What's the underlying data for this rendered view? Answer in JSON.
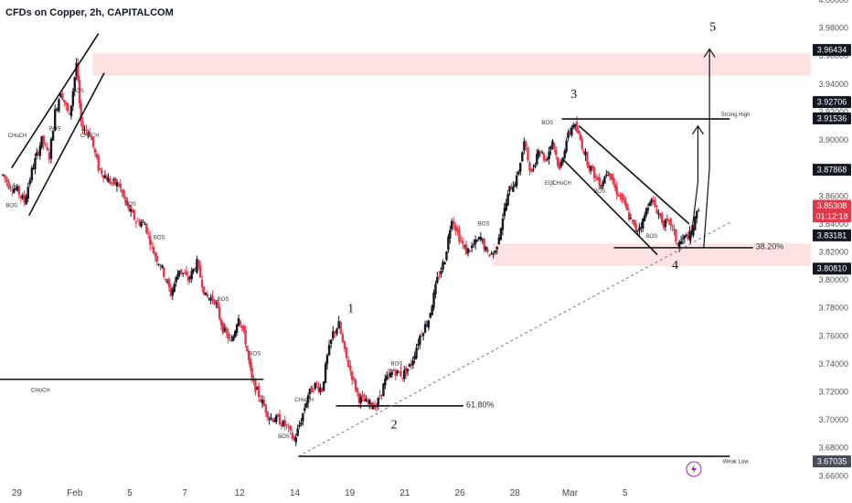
{
  "header": {
    "title": "CFDs on Copper, 2h, CAPITALCOM"
  },
  "chart_data": {
    "type": "candlestick",
    "symbol": "CFDs on Copper",
    "timeframe": "2h",
    "source": "CAPITALCOM",
    "ylim": [
      3.655,
      4.0
    ],
    "y_ticks": [
      "3.66000",
      "3.68000",
      "3.70000",
      "3.72000",
      "3.74000",
      "3.76000",
      "3.78000",
      "3.80000",
      "3.82000",
      "3.84000",
      "3.86000",
      "3.88000",
      "3.90000",
      "3.92000",
      "3.94000",
      "3.96000",
      "3.98000",
      "4.00000"
    ],
    "x_ticks": [
      "29",
      "Feb",
      "5",
      "7",
      "12",
      "14",
      "19",
      "21",
      "26",
      "28",
      "Mar",
      "5"
    ],
    "x_tick_positions": [
      0,
      10,
      19.5,
      29,
      38.5,
      48,
      57.5,
      67,
      76.5,
      86,
      95.5,
      105
    ],
    "price_tags": [
      {
        "label": "3.96434",
        "value": 3.96434,
        "style": "dark"
      },
      {
        "label": "3.92706",
        "value": 3.92706,
        "style": "dark"
      },
      {
        "label": "3.91536",
        "value": 3.91536,
        "style": "dark"
      },
      {
        "label": "3.87868",
        "value": 3.87868,
        "style": "dark"
      },
      {
        "label": "3.85308",
        "value": 3.853,
        "style": "red"
      },
      {
        "label": "01:12:18",
        "value": 3.8455,
        "style": "red"
      },
      {
        "label": "3.83181",
        "value": 3.83181,
        "style": "dark"
      },
      {
        "label": "3.80810",
        "value": 3.8081,
        "style": "dark"
      },
      {
        "label": "3.67035",
        "value": 3.67035,
        "style": "gray"
      }
    ],
    "waypoints": [
      [
        0.5,
        3.875
      ],
      [
        1.5,
        3.868
      ],
      [
        3,
        3.864
      ],
      [
        4.2,
        3.856
      ],
      [
        5.5,
        3.878
      ],
      [
        7.2,
        3.9
      ],
      [
        8.5,
        3.888
      ],
      [
        9.5,
        3.92
      ],
      [
        10.5,
        3.935
      ],
      [
        12,
        3.916
      ],
      [
        13.2,
        3.955
      ],
      [
        14,
        3.91
      ],
      [
        15.5,
        3.905
      ],
      [
        17,
        3.88
      ],
      [
        19,
        3.87
      ],
      [
        20.5,
        3.868
      ],
      [
        22,
        3.852
      ],
      [
        23.5,
        3.842
      ],
      [
        25,
        3.84
      ],
      [
        26.5,
        3.82
      ],
      [
        28,
        3.808
      ],
      [
        29.5,
        3.79
      ],
      [
        31,
        3.808
      ],
      [
        32.5,
        3.8
      ],
      [
        34,
        3.812
      ],
      [
        35.5,
        3.788
      ],
      [
        37,
        3.786
      ],
      [
        38.5,
        3.765
      ],
      [
        40,
        3.755
      ],
      [
        41.2,
        3.775
      ],
      [
        42.4,
        3.756
      ],
      [
        43.5,
        3.728
      ],
      [
        45,
        3.715
      ],
      [
        46.5,
        3.702
      ],
      [
        48,
        3.7
      ],
      [
        49.5,
        3.695
      ],
      [
        50.8,
        3.685
      ],
      [
        52,
        3.7
      ],
      [
        53.2,
        3.718
      ],
      [
        54.4,
        3.725
      ],
      [
        55.6,
        3.722
      ],
      [
        56.5,
        3.745
      ],
      [
        57.5,
        3.762
      ],
      [
        58.5,
        3.768
      ],
      [
        59.5,
        3.748
      ],
      [
        60.5,
        3.735
      ],
      [
        62,
        3.715
      ],
      [
        63.5,
        3.712
      ],
      [
        65,
        3.71
      ],
      [
        66.5,
        3.728
      ],
      [
        68,
        3.735
      ],
      [
        69.5,
        3.732
      ],
      [
        71,
        3.74
      ],
      [
        72.5,
        3.76
      ],
      [
        74,
        3.772
      ],
      [
        75.5,
        3.8
      ],
      [
        76.8,
        3.815
      ],
      [
        78,
        3.845
      ],
      [
        79.3,
        3.83
      ],
      [
        80.5,
        3.82
      ],
      [
        81.8,
        3.825
      ],
      [
        83,
        3.83
      ],
      [
        84.2,
        3.818
      ],
      [
        85.5,
        3.82
      ],
      [
        86.8,
        3.845
      ],
      [
        88,
        3.865
      ],
      [
        89.2,
        3.872
      ],
      [
        90.5,
        3.898
      ],
      [
        91.8,
        3.875
      ],
      [
        93,
        3.895
      ],
      [
        94.2,
        3.885
      ],
      [
        95.4,
        3.9
      ],
      [
        96.6,
        3.878
      ],
      [
        97.8,
        3.9
      ],
      [
        99,
        3.912
      ],
      [
        100.2,
        3.9
      ],
      [
        101.4,
        3.885
      ],
      [
        102.6,
        3.875
      ],
      [
        103.8,
        3.868
      ],
      [
        105,
        3.88
      ],
      [
        106.2,
        3.865
      ],
      [
        107.4,
        3.858
      ],
      [
        108.6,
        3.845
      ],
      [
        109.8,
        3.835
      ],
      [
        111,
        3.842
      ],
      [
        112.2,
        3.858
      ],
      [
        113.4,
        3.85
      ],
      [
        114.6,
        3.84
      ],
      [
        115.8,
        3.84
      ],
      [
        117,
        3.825
      ],
      [
        118.2,
        3.83
      ],
      [
        119.4,
        3.833
      ],
      [
        120.6,
        3.852
      ]
    ],
    "zones": [
      {
        "from_x": 16,
        "to_x": 140,
        "y_low": 3.946,
        "y_high": 3.962
      },
      {
        "from_x": 85,
        "to_x": 140,
        "y_low": 3.81,
        "y_high": 3.826
      }
    ],
    "lines": [
      {
        "kind": "solid",
        "points": [
          [
            0,
            3.729
          ],
          [
            45.5,
            3.729
          ]
        ]
      },
      {
        "kind": "solid",
        "points": [
          [
            51.5,
            3.674
          ],
          [
            126,
            3.674
          ]
        ]
      },
      {
        "kind": "solid",
        "points": [
          [
            97,
            3.915
          ],
          [
            126,
            3.915
          ]
        ]
      },
      {
        "kind": "solid",
        "points": [
          [
            106,
            3.823
          ],
          [
            130,
            3.823
          ]
        ]
      },
      {
        "kind": "solid",
        "points": [
          [
            58,
            3.71
          ],
          [
            80,
            3.71
          ]
        ]
      },
      {
        "kind": "solid",
        "points": [
          [
            5,
            3.846
          ],
          [
            18,
            3.948
          ]
        ]
      },
      {
        "kind": "solid",
        "points": [
          [
            2,
            3.88
          ],
          [
            17,
            3.976
          ]
        ]
      },
      {
        "kind": "solid",
        "points": [
          [
            100,
            3.91
          ],
          [
            119,
            3.84
          ]
        ]
      },
      {
        "kind": "solid",
        "points": [
          [
            97,
            3.887
          ],
          [
            113.5,
            3.818
          ]
        ]
      },
      {
        "kind": "dashed",
        "points": [
          [
            51.5,
            3.674
          ],
          [
            126,
            3.841
          ]
        ]
      },
      {
        "kind": "arrow",
        "points": [
          [
            119.2,
            3.826
          ],
          [
            120.5,
            3.87
          ],
          [
            120.5,
            3.91
          ]
        ]
      },
      {
        "kind": "arrow",
        "points": [
          [
            121.5,
            3.823
          ],
          [
            122.5,
            3.88
          ],
          [
            122.5,
            3.965
          ]
        ]
      }
    ],
    "labels": [
      {
        "text": "1",
        "x": 60,
        "y": 3.777,
        "kind": "wave"
      },
      {
        "text": "2",
        "x": 67.5,
        "y": 3.694,
        "kind": "wave"
      },
      {
        "text": "3",
        "x": 98.5,
        "y": 3.93,
        "kind": "wave"
      },
      {
        "text": "4",
        "x": 116,
        "y": 3.808,
        "kind": "wave"
      },
      {
        "text": "5",
        "x": 122.5,
        "y": 3.978,
        "kind": "wave"
      },
      {
        "text": "61.80%",
        "x": 80.5,
        "y": 3.709,
        "kind": "fib"
      },
      {
        "text": "38.20%",
        "x": 130.5,
        "y": 3.822,
        "kind": "fib"
      },
      {
        "text": "CHoCH",
        "x": 7,
        "y": 3.72,
        "kind": "ann"
      },
      {
        "text": "CHoCH",
        "x": 3,
        "y": 3.902,
        "kind": "ann"
      },
      {
        "text": "CHoCH",
        "x": 15.5,
        "y": 3.902,
        "kind": "ann"
      },
      {
        "text": "CHoCH",
        "x": 52.5,
        "y": 3.713,
        "kind": "ann"
      },
      {
        "text": "CHoCH",
        "x": 97,
        "y": 3.868,
        "kind": "ann"
      },
      {
        "text": "BOS",
        "x": 2,
        "y": 3.852,
        "kind": "ann"
      },
      {
        "text": "BOS",
        "x": 13.5,
        "y": 3.934,
        "kind": "ann"
      },
      {
        "text": "BOS",
        "x": 9.5,
        "y": 3.907,
        "kind": "ann"
      },
      {
        "text": "BOS",
        "x": 22.5,
        "y": 3.853,
        "kind": "ann"
      },
      {
        "text": "BOS",
        "x": 27.5,
        "y": 3.829,
        "kind": "ann"
      },
      {
        "text": "BOS",
        "x": 38.5,
        "y": 3.785,
        "kind": "ann"
      },
      {
        "text": "BOS",
        "x": 44,
        "y": 3.746,
        "kind": "ann"
      },
      {
        "text": "BOS",
        "x": 49,
        "y": 3.687,
        "kind": "ann"
      },
      {
        "text": "BOS",
        "x": 68.5,
        "y": 3.739,
        "kind": "ann"
      },
      {
        "text": "BOS",
        "x": 83.5,
        "y": 3.839,
        "kind": "ann"
      },
      {
        "text": "BOS",
        "x": 94.5,
        "y": 3.911,
        "kind": "ann"
      },
      {
        "text": "BOS",
        "x": 103.5,
        "y": 3.862,
        "kind": "ann"
      },
      {
        "text": "BOS",
        "x": 112.5,
        "y": 3.83,
        "kind": "ann"
      },
      {
        "text": "EQL",
        "x": 95,
        "y": 3.868,
        "kind": "ann"
      },
      {
        "text": "Strong High",
        "x": 127,
        "y": 3.917,
        "kind": "ann"
      },
      {
        "text": "Weak Low",
        "x": 127,
        "y": 3.669,
        "kind": "ann"
      }
    ]
  }
}
